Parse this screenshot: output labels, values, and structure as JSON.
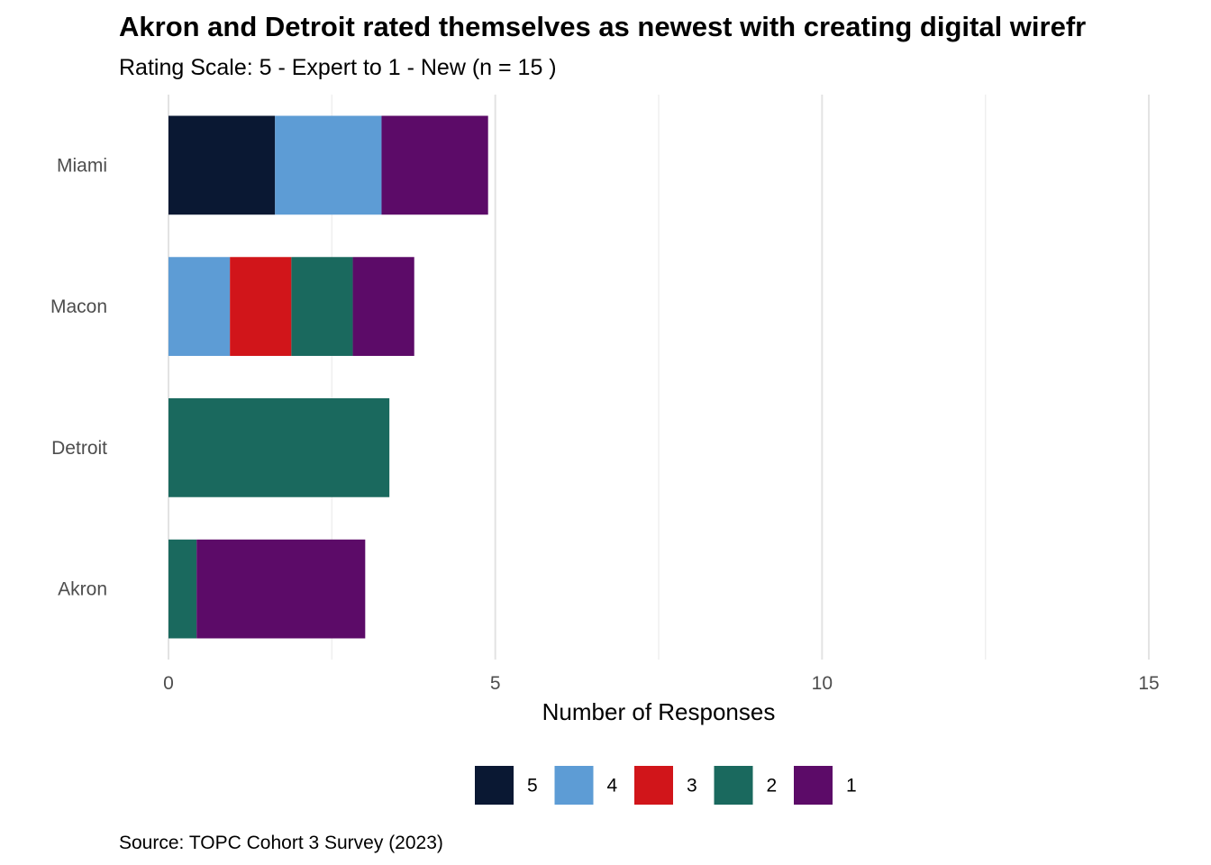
{
  "chart_data": {
    "type": "bar",
    "orientation": "horizontal",
    "stacked": true,
    "title": "Akron and Detroit rated themselves as newest with creating digital wirefr",
    "subtitle": "Rating Scale: 5 - Expert to 1 - New (n = 15 )",
    "xlabel": "Number of Responses",
    "ylabel": "",
    "xlim": [
      0,
      15
    ],
    "xticks": [
      0,
      5,
      10,
      15
    ],
    "categories": [
      "Miami",
      "Macon",
      "Detroit",
      "Akron"
    ],
    "series": [
      {
        "name": "5",
        "color": "#0a1833",
        "values": [
          1.63,
          0,
          0,
          0
        ]
      },
      {
        "name": "4",
        "color": "#5d9cd5",
        "values": [
          1.63,
          0.94,
          0,
          0
        ]
      },
      {
        "name": "3",
        "color": "#d1151a",
        "values": [
          0,
          0.94,
          0,
          0
        ]
      },
      {
        "name": "2",
        "color": "#1a695e",
        "values": [
          0,
          0.94,
          3.38,
          0.43
        ]
      },
      {
        "name": "1",
        "color": "#5c0b68",
        "values": [
          1.63,
          0.94,
          0,
          2.58
        ]
      }
    ],
    "legend_position": "bottom",
    "grid": true,
    "caption": "Source: TOPC Cohort 3 Survey (2023)"
  }
}
